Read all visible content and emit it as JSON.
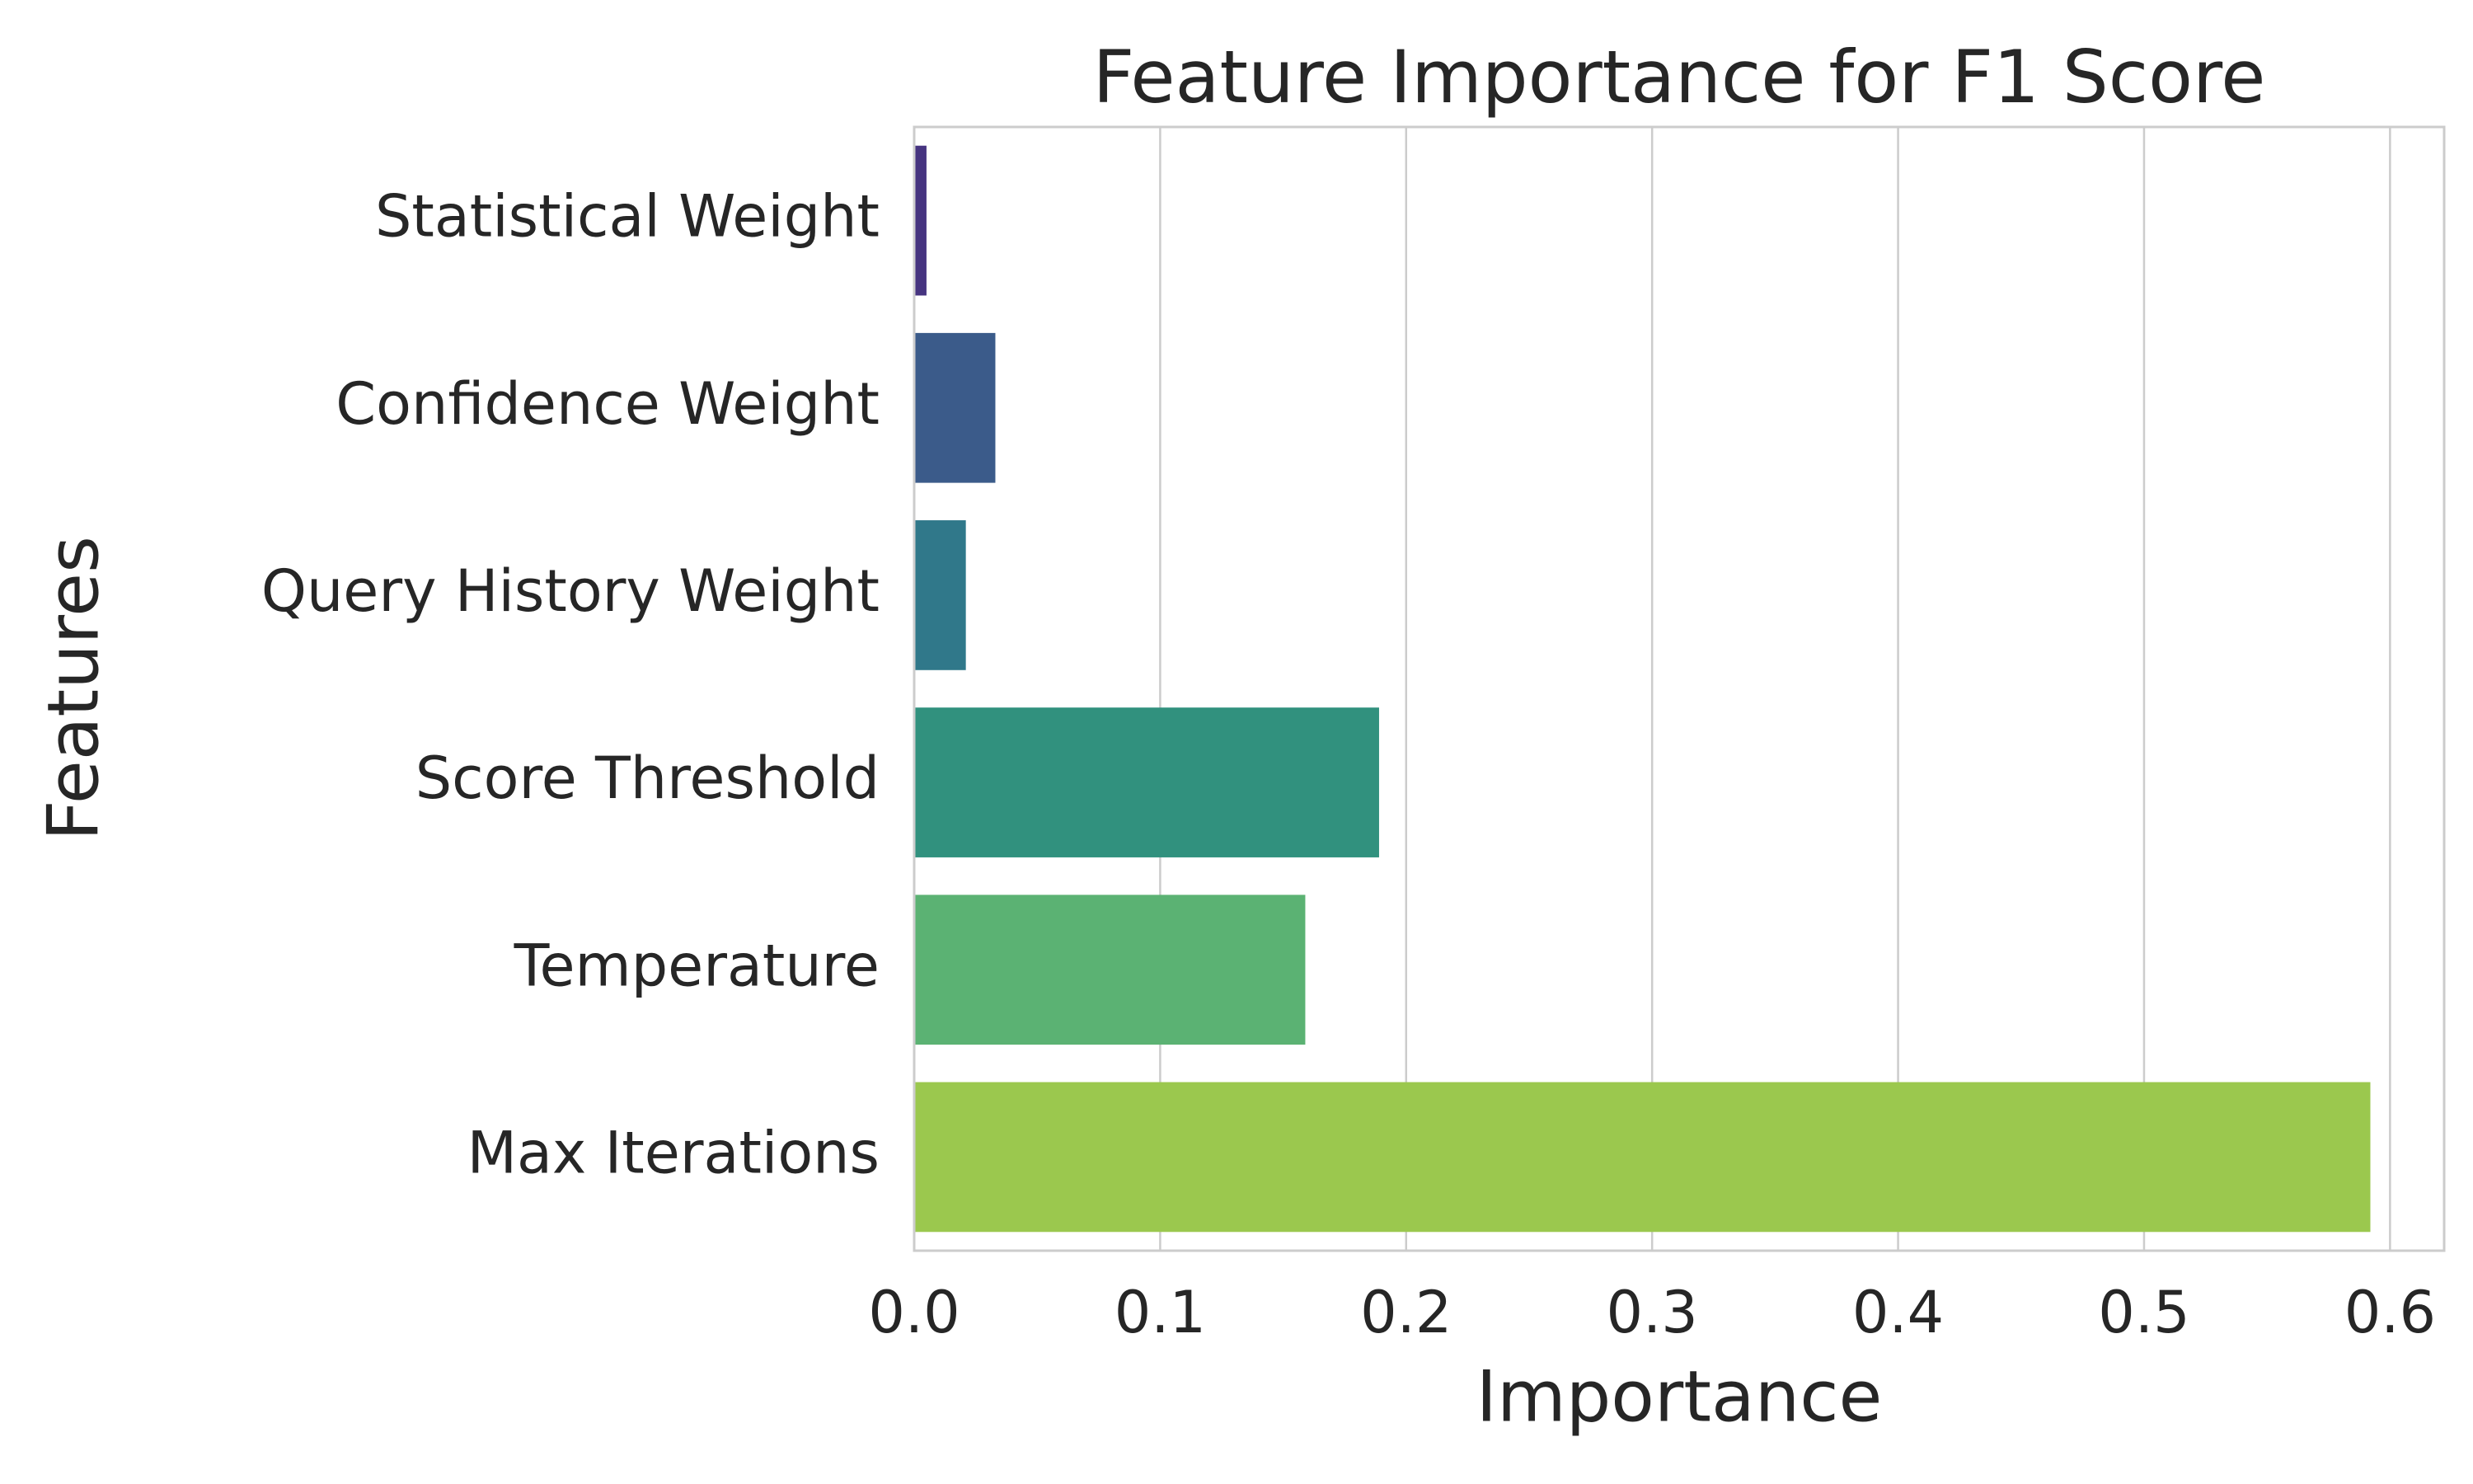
{
  "chart_data": {
    "type": "barh",
    "title": "Feature Importance for F1 Score",
    "xlabel": "Importance",
    "ylabel": "Features",
    "categories": [
      "Statistical Weight",
      "Confidence Weight",
      "Query History Weight",
      "Score Threshold",
      "Temperature",
      "Max Iterations"
    ],
    "values": [
      0.005,
      0.033,
      0.021,
      0.189,
      0.159,
      0.592
    ],
    "colors": [
      "#463480",
      "#3b5b8a",
      "#30788a",
      "#31917e",
      "#5bb273",
      "#9bc84e"
    ],
    "xlim": [
      0,
      0.622
    ],
    "xticks": [
      {
        "value": 0,
        "label": "0.0"
      },
      0.1,
      0.2,
      0.3,
      0.4,
      0.5,
      0.6
    ],
    "grid": true
  }
}
